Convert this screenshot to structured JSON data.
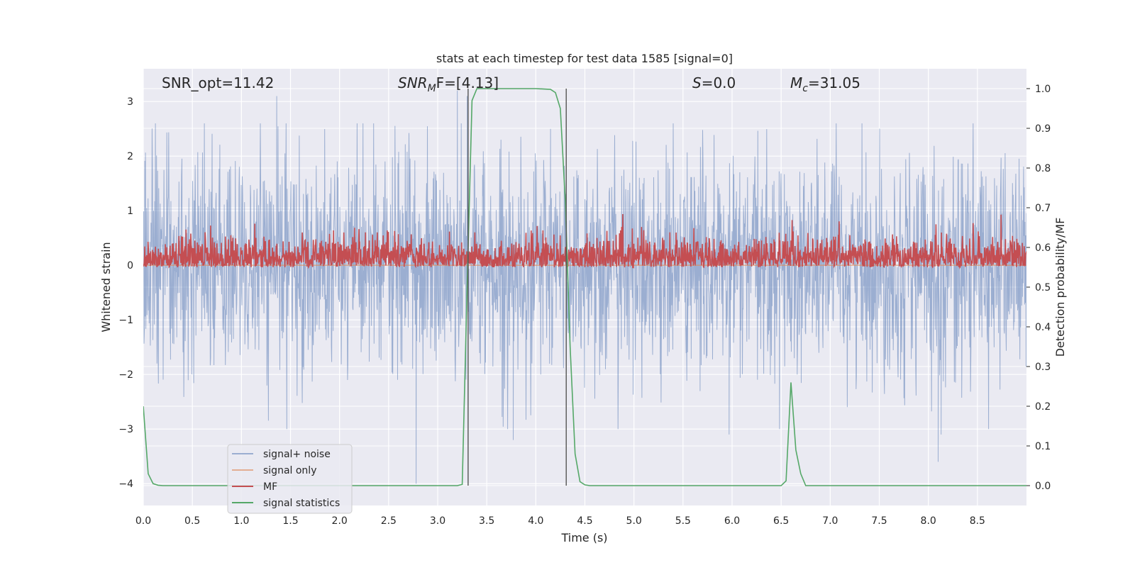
{
  "chart_data": {
    "type": "line",
    "title": "stats at each timestep for test data 1585 [signal=0]",
    "xlabel": "Time (s)",
    "ylabel": "Whitened strain",
    "y2label": "Detection probability/MF",
    "xlim": [
      0,
      9.0
    ],
    "ylim": [
      -4.4,
      3.6
    ],
    "y2lim": [
      -0.05,
      1.05
    ],
    "xticks": [
      0.0,
      0.5,
      1.0,
      1.5,
      2.0,
      2.5,
      3.0,
      3.5,
      4.0,
      4.5,
      5.0,
      5.5,
      6.0,
      6.5,
      7.0,
      7.5,
      8.0,
      8.5
    ],
    "yticks": [
      -4,
      -3,
      -2,
      -1,
      0,
      1,
      2,
      3
    ],
    "y2ticks": [
      0.0,
      0.1,
      0.2,
      0.3,
      0.4,
      0.5,
      0.6,
      0.7,
      0.8,
      0.9,
      1.0
    ],
    "grid": true,
    "legend_position": "lower-left",
    "annotations": {
      "snr_opt": "SNR_opt=11.42",
      "snr_mf_prefix": "SNR",
      "snr_mf_sub": "M",
      "snr_mf_suffix": "F=[4.13]",
      "s_prefix": "S",
      "s_value": "=0.0",
      "mc_prefix": "M",
      "mc_sub": "c",
      "mc_value": "=31.05"
    },
    "vertical_lines_x": [
      3.31,
      4.31
    ],
    "series": [
      {
        "name": "signal+ noise",
        "color": "#4c72b0",
        "opacity": 0.5,
        "axis": "left",
        "kind": "noise",
        "amplitude_sigma": 1.0,
        "extremes": [
          {
            "x": 1.36,
            "y": 3.1
          },
          {
            "x": 3.2,
            "y": 3.2
          },
          {
            "x": 3.3,
            "y": 3.1
          },
          {
            "x": 2.78,
            "y": -4.0
          },
          {
            "x": 3.77,
            "y": -3.2
          },
          {
            "x": 8.1,
            "y": -3.6
          },
          {
            "x": 4.15,
            "y": 2.5
          },
          {
            "x": 8.13,
            "y": -3.1
          },
          {
            "x": 5.97,
            "y": -3.1
          }
        ]
      },
      {
        "name": "signal only",
        "color": "#dd8452",
        "opacity": 0.6,
        "axis": "left",
        "kind": "flat",
        "value": 0.0
      },
      {
        "name": "MF",
        "color": "#c44e52",
        "axis": "right",
        "kind": "mf",
        "baseline": 0.55,
        "range": [
          0.55,
          0.69
        ]
      },
      {
        "name": "signal statistics",
        "color": "#55a868",
        "axis": "right",
        "kind": "line",
        "x": [
          0.0,
          0.05,
          0.1,
          0.15,
          0.2,
          0.3,
          0.5,
          1.0,
          2.0,
          3.0,
          3.2,
          3.25,
          3.3,
          3.35,
          3.4,
          3.5,
          4.0,
          4.15,
          4.2,
          4.25,
          4.3,
          4.35,
          4.4,
          4.45,
          4.5,
          4.55,
          5.0,
          6.0,
          6.5,
          6.55,
          6.6,
          6.65,
          6.7,
          6.75,
          7.0,
          8.0,
          9.0
        ],
        "y": [
          0.2,
          0.03,
          0.005,
          0.001,
          0.0,
          0.0,
          0.0,
          0.0,
          0.0,
          0.0,
          0.0,
          0.003,
          0.5,
          0.97,
          1.0,
          1.0,
          1.0,
          0.998,
          0.99,
          0.95,
          0.72,
          0.35,
          0.08,
          0.01,
          0.002,
          0.0,
          0.0,
          0.0,
          0.0,
          0.012,
          0.26,
          0.09,
          0.03,
          0.0,
          0.0,
          0.0,
          0.0
        ]
      }
    ]
  }
}
